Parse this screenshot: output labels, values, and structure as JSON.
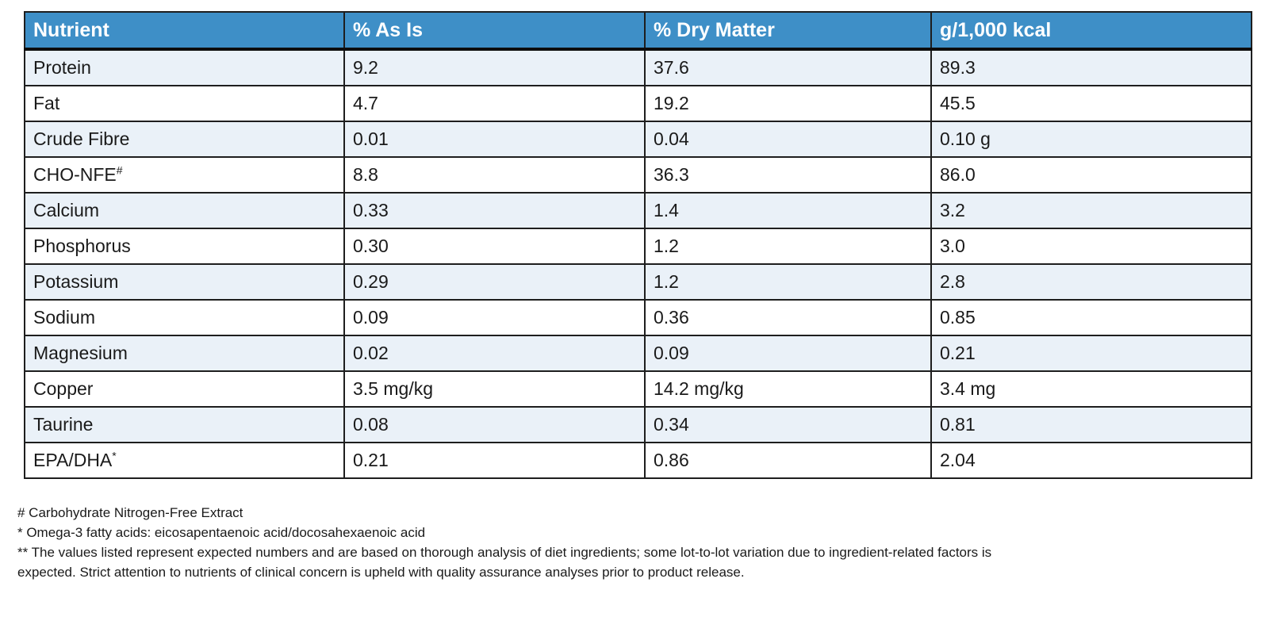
{
  "colors": {
    "header_bg": "#3e8fc7",
    "row_alt_bg": "#eaf1f8",
    "border": "#1e1e1e",
    "header_text": "#ffffff",
    "body_text": "#1a1a1a"
  },
  "table": {
    "columns": [
      "Nutrient",
      "% As Is",
      "% Dry Matter",
      "g/1,000 kcal"
    ],
    "rows": [
      {
        "nutrient": "Protein",
        "sup": "",
        "as_is": "9.2",
        "dry_matter": "37.6",
        "per_1000_kcal": "89.3"
      },
      {
        "nutrient": "Fat",
        "sup": "",
        "as_is": "4.7",
        "dry_matter": "19.2",
        "per_1000_kcal": "45.5"
      },
      {
        "nutrient": "Crude Fibre",
        "sup": "",
        "as_is": "0.01",
        "dry_matter": "0.04",
        "per_1000_kcal": "0.10 g"
      },
      {
        "nutrient": "CHO-NFE",
        "sup": "#",
        "as_is": "8.8",
        "dry_matter": "36.3",
        "per_1000_kcal": "86.0"
      },
      {
        "nutrient": "Calcium",
        "sup": "",
        "as_is": "0.33",
        "dry_matter": "1.4",
        "per_1000_kcal": "3.2"
      },
      {
        "nutrient": "Phosphorus",
        "sup": "",
        "as_is": "0.30",
        "dry_matter": "1.2",
        "per_1000_kcal": "3.0"
      },
      {
        "nutrient": "Potassium",
        "sup": "",
        "as_is": "0.29",
        "dry_matter": "1.2",
        "per_1000_kcal": "2.8"
      },
      {
        "nutrient": "Sodium",
        "sup": "",
        "as_is": "0.09",
        "dry_matter": "0.36",
        "per_1000_kcal": "0.85"
      },
      {
        "nutrient": "Magnesium",
        "sup": "",
        "as_is": "0.02",
        "dry_matter": "0.09",
        "per_1000_kcal": "0.21"
      },
      {
        "nutrient": "Copper",
        "sup": "",
        "as_is": "3.5 mg/kg",
        "dry_matter": "14.2 mg/kg",
        "per_1000_kcal": "3.4 mg"
      },
      {
        "nutrient": "Taurine",
        "sup": "",
        "as_is": "0.08",
        "dry_matter": "0.34",
        "per_1000_kcal": "0.81"
      },
      {
        "nutrient": "EPA/DHA",
        "sup": "*",
        "as_is": "0.21",
        "dry_matter": "0.86",
        "per_1000_kcal": "2.04"
      }
    ]
  },
  "footnotes": [
    "# Carbohydrate Nitrogen-Free Extract",
    "* Omega-3 fatty acids: eicosapentaenoic acid/docosahexaenoic acid",
    "** The values listed represent expected numbers and are based on thorough analysis of diet ingredients; some lot-to-lot variation due to ingredient-related factors is expected. Strict attention to nutrients of clinical concern is upheld with quality assurance analyses prior to product release."
  ]
}
